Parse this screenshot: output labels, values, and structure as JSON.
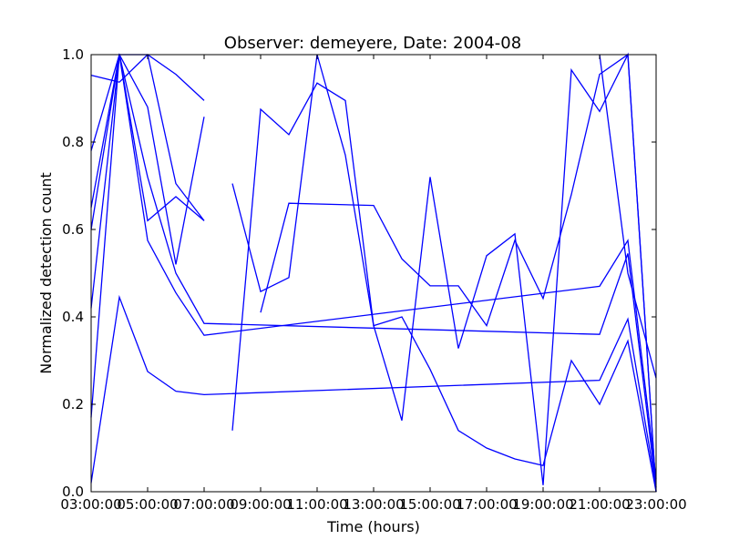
{
  "chart_data": {
    "type": "line",
    "title": "Observer: demeyere, Date: 2004-08",
    "xlabel": "Time (hours)",
    "ylabel": "Normalized detection count",
    "xlim": [
      "03:00:00",
      "23:00:00"
    ],
    "ylim": [
      0,
      1
    ],
    "xticks": [
      "03:00:00",
      "05:00:00",
      "07:00:00",
      "09:00:00",
      "11:00:00",
      "13:00:00",
      "15:00:00",
      "17:00:00",
      "19:00:00",
      "21:00:00",
      "23:00:00"
    ],
    "yticks": [
      "0.0",
      "0.2",
      "0.4",
      "0.6",
      "0.8",
      "1.0"
    ],
    "grid": false,
    "line_color": "#0000ff",
    "series": [
      {
        "points": [
          [
            3,
            0.953
          ],
          [
            4,
            0.937
          ],
          [
            5,
            1.0
          ],
          [
            6,
            0.955
          ],
          [
            7,
            0.895
          ]
        ]
      },
      {
        "points": [
          [
            3,
            0.78
          ],
          [
            4,
            1.0
          ],
          [
            5,
            0.88
          ],
          [
            6,
            0.52
          ],
          [
            7,
            0.858
          ]
        ]
      },
      {
        "points": [
          [
            3,
            0.65
          ],
          [
            4,
            1.0
          ],
          [
            5,
            0.62
          ],
          [
            6,
            0.675
          ],
          [
            7,
            0.62
          ]
        ]
      },
      {
        "points": [
          [
            3,
            0.6
          ],
          [
            4,
            1.0
          ],
          [
            5,
            1.0
          ],
          [
            6,
            0.705
          ],
          [
            7,
            0.62
          ]
        ]
      },
      {
        "points": [
          [
            3,
            0.42
          ],
          [
            4,
            1.0
          ],
          [
            5,
            0.72
          ],
          [
            6,
            0.5
          ],
          [
            7,
            0.385
          ],
          [
            21,
            0.36
          ],
          [
            22,
            0.545
          ],
          [
            23,
            0.01
          ]
        ]
      },
      {
        "points": [
          [
            3,
            0.17
          ],
          [
            4,
            1.0
          ],
          [
            5,
            0.575
          ],
          [
            6,
            0.455
          ],
          [
            7,
            0.358
          ],
          [
            21,
            0.47
          ],
          [
            22,
            0.575
          ],
          [
            23,
            0.03
          ]
        ]
      },
      {
        "points": [
          [
            3,
            0.02
          ],
          [
            4,
            0.445
          ],
          [
            5,
            0.275
          ],
          [
            6,
            0.23
          ],
          [
            7,
            0.222
          ],
          [
            21,
            0.255
          ],
          [
            22,
            0.395
          ],
          [
            23,
            0.01
          ]
        ]
      },
      {
        "points": [
          [
            8,
            0.705
          ],
          [
            9,
            0.458
          ],
          [
            10,
            0.49
          ],
          [
            11,
            1.0
          ],
          [
            12,
            0.77
          ],
          [
            13,
            0.38
          ],
          [
            14,
            0.4
          ],
          [
            15,
            0.28
          ],
          [
            16,
            0.14
          ],
          [
            17,
            0.1
          ],
          [
            18,
            0.075
          ],
          [
            19,
            0.06
          ],
          [
            20,
            0.3
          ],
          [
            21,
            0.2
          ],
          [
            22,
            0.345
          ],
          [
            23,
            0.0
          ]
        ]
      },
      {
        "points": [
          [
            8,
            0.14
          ],
          [
            9,
            0.875
          ],
          [
            10,
            0.817
          ],
          [
            11,
            0.935
          ],
          [
            12,
            0.895
          ],
          [
            13,
            0.38
          ],
          [
            14,
            0.163
          ],
          [
            15,
            0.72
          ],
          [
            16,
            0.328
          ],
          [
            17,
            0.54
          ],
          [
            18,
            0.59
          ],
          [
            19,
            0.015
          ],
          [
            20,
            0.965
          ],
          [
            21,
            0.87
          ],
          [
            22,
            1.0
          ],
          [
            23,
            0.0
          ]
        ]
      },
      {
        "points": [
          [
            9,
            0.41
          ],
          [
            10,
            0.66
          ],
          [
            13,
            0.655
          ],
          [
            14,
            0.533
          ],
          [
            15,
            0.471
          ],
          [
            16,
            0.471
          ],
          [
            17,
            0.38
          ],
          [
            18,
            0.575
          ],
          [
            19,
            0.442
          ],
          [
            20,
            0.68
          ],
          [
            21,
            0.955
          ],
          [
            22,
            1.0
          ],
          [
            23,
            0.0
          ]
        ]
      },
      {
        "points": [
          [
            21,
            1.0
          ],
          [
            22,
            0.5
          ],
          [
            23,
            0.26
          ]
        ]
      }
    ]
  }
}
